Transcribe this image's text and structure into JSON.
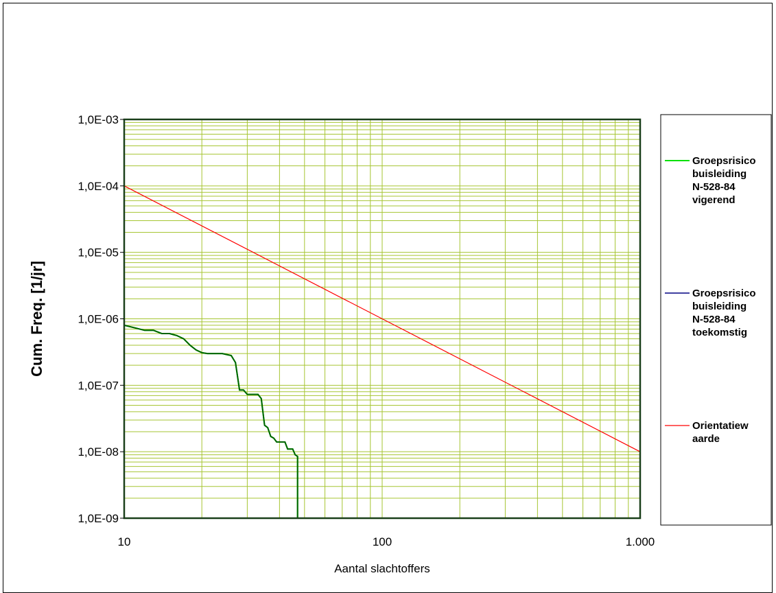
{
  "chart_data": {
    "type": "line",
    "title": "",
    "xlabel": "Aantal slachtoffers",
    "ylabel": "Cum. Freq. [1/jr]",
    "xscale": "log",
    "yscale": "log",
    "xlim": [
      10,
      1000
    ],
    "ylim": [
      1e-09,
      0.001
    ],
    "grid": true,
    "legend_position": "right",
    "x_tick_labels": [
      "10",
      "100",
      "1.000"
    ],
    "y_tick_labels": [
      "1,0E-09",
      "1,0E-08",
      "1,0E-07",
      "1,0E-06",
      "1,0E-05",
      "1,0E-04",
      "1,0E-03"
    ],
    "colors": {
      "plot_background": "#ffffff",
      "grid": "#a6c532",
      "plot_border": "#1a3f1a",
      "vigerend": "#00e000",
      "toekomstig": "#000080",
      "orientatie": "#ff0000",
      "overlap": "#006400"
    },
    "series": [
      {
        "name": "Groepsrisico buisleiding N-528-84 vigerend",
        "name_lines": [
          "Groepsrisico",
          "buisleiding",
          "N-528-84",
          "vigerend"
        ],
        "x": [
          10,
          11,
          12,
          13,
          14,
          15,
          16,
          17,
          18,
          19,
          20,
          21,
          22,
          23,
          24,
          25,
          26,
          27,
          28,
          29,
          30,
          31,
          32,
          33,
          34,
          35,
          36,
          37,
          38,
          39,
          40,
          41,
          42,
          43,
          44,
          45,
          46,
          47,
          47
        ],
        "y": [
          8e-07,
          7.3e-07,
          6.7e-07,
          6.7e-07,
          6e-07,
          6e-07,
          5.6e-07,
          5e-07,
          4e-07,
          3.4e-07,
          3.1e-07,
          3e-07,
          3e-07,
          3e-07,
          3e-07,
          2.9e-07,
          2.8e-07,
          2.2e-07,
          8.5e-08,
          8.5e-08,
          7.3e-08,
          7.3e-08,
          7.3e-08,
          7.3e-08,
          6.3e-08,
          2.5e-08,
          2.3e-08,
          1.7e-08,
          1.6e-08,
          1.4e-08,
          1.4e-08,
          1.4e-08,
          1.4e-08,
          1.1e-08,
          1.1e-08,
          1.1e-08,
          9e-09,
          8.5e-09,
          1e-09
        ]
      },
      {
        "name": "Groepsrisico buisleiding N-528-84 toekomstig",
        "name_lines": [
          "Groepsrisico",
          "buisleiding",
          "N-528-84",
          "toekomstig"
        ],
        "x": [
          10,
          11,
          12,
          13,
          14,
          15,
          16,
          17,
          18,
          19,
          20,
          21,
          22,
          23,
          24,
          25,
          26,
          27,
          28,
          29,
          30,
          31,
          32,
          33,
          34,
          35,
          36,
          37,
          38,
          39,
          40,
          41,
          42,
          43,
          44,
          45,
          46,
          47,
          47
        ],
        "y": [
          8e-07,
          7.3e-07,
          6.7e-07,
          6.7e-07,
          6e-07,
          6e-07,
          5.6e-07,
          5e-07,
          4e-07,
          3.4e-07,
          3.1e-07,
          3e-07,
          3e-07,
          3e-07,
          3e-07,
          2.9e-07,
          2.8e-07,
          2.2e-07,
          8.5e-08,
          8.5e-08,
          7.3e-08,
          7.3e-08,
          7.3e-08,
          7.3e-08,
          6.3e-08,
          2.5e-08,
          2.3e-08,
          1.7e-08,
          1.6e-08,
          1.4e-08,
          1.4e-08,
          1.4e-08,
          1.4e-08,
          1.1e-08,
          1.1e-08,
          1.1e-08,
          9e-09,
          8.5e-09,
          1e-09
        ]
      },
      {
        "name": "Orientatiewaarde",
        "name_lines": [
          "Orientatiew",
          "aarde"
        ],
        "x": [
          10,
          1000
        ],
        "y": [
          0.0001,
          1e-08
        ]
      }
    ]
  }
}
